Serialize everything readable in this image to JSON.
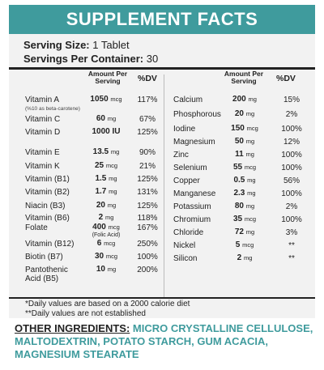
{
  "title": "SUPPLEMENT FACTS",
  "serving": {
    "size_label": "Serving Size:",
    "size_value": "1 Tablet",
    "per_container_label": "Servings Per Container:",
    "per_container_value": "30"
  },
  "headers": {
    "amount_line1": "Amount Per",
    "amount_line2": "Serving",
    "dv": "%DV"
  },
  "left_rows": [
    {
      "name": "Vitamin A",
      "sub": "(%10 as beta-carotene)",
      "amount": "1050",
      "unit": "mcg",
      "dv": "117%"
    },
    {
      "name": "Vitamin C",
      "sub": "",
      "amount": "60",
      "unit": "mg",
      "dv": "67%"
    },
    {
      "name": "Vitamin D",
      "sub": "",
      "amount": "1000 IU",
      "unit": "",
      "dv": "125%"
    },
    {
      "name": "Vitamin E",
      "sub": "",
      "amount": "13.5",
      "unit": "mg",
      "dv": "90%"
    },
    {
      "name": "Vitamin K",
      "sub": "",
      "amount": "25",
      "unit": "mcg",
      "dv": "21%"
    },
    {
      "name": "Vitamin (B1)",
      "sub": "",
      "amount": "1.5",
      "unit": "mg",
      "dv": "125%"
    },
    {
      "name": "Vitamin (B2)",
      "sub": "",
      "amount": "1.7",
      "unit": "mg",
      "dv": "131%"
    },
    {
      "name": "Niacin (B3)",
      "sub": "",
      "amount": "20",
      "unit": "mg",
      "dv": "125%"
    },
    {
      "name": "Vitamin (B6)",
      "sub": "",
      "amount": "2",
      "unit": "mg",
      "dv": "118%"
    },
    {
      "name": "Folate",
      "sub": "",
      "amount": "400",
      "unit": "mcg",
      "extra": "(Folic Acid)",
      "dv": "167%"
    },
    {
      "name": "Vitamin (B12)",
      "sub": "",
      "amount": "6",
      "unit": "mcg",
      "dv": "250%"
    },
    {
      "name": "Biotin (B7)",
      "sub": "",
      "amount": "30",
      "unit": "mcg",
      "dv": "100%"
    },
    {
      "name": "Pantothenic",
      "sub2": "Acid (B5)",
      "amount": "10",
      "unit": "mg",
      "dv": "200%"
    }
  ],
  "right_rows": [
    {
      "name": "Calcium",
      "amount": "200",
      "unit": "mg",
      "dv": "15%"
    },
    {
      "name": "Phosphorous",
      "amount": "20",
      "unit": "mg",
      "dv": "2%"
    },
    {
      "name": "Iodine",
      "amount": "150",
      "unit": "mcg",
      "dv": "100%"
    },
    {
      "name": "Magnesium",
      "amount": "50",
      "unit": "mg",
      "dv": "12%"
    },
    {
      "name": "Zinc",
      "amount": "11",
      "unit": "mg",
      "dv": "100%"
    },
    {
      "name": "Selenium",
      "amount": "55",
      "unit": "mcg",
      "dv": "100%"
    },
    {
      "name": "Copper",
      "amount": "0.5",
      "unit": "mg",
      "dv": "56%"
    },
    {
      "name": "Manganese",
      "amount": "2.3",
      "unit": "mg",
      "dv": "100%"
    },
    {
      "name": "Potassium",
      "amount": "80",
      "unit": "mg",
      "dv": "2%"
    },
    {
      "name": "Chromium",
      "amount": "35",
      "unit": "mcg",
      "dv": "100%"
    },
    {
      "name": "Chloride",
      "amount": "72",
      "unit": "mg",
      "dv": "3%"
    },
    {
      "name": "Nickel",
      "amount": "5",
      "unit": "mcg",
      "dv": "**"
    },
    {
      "name": "Silicon",
      "amount": "2",
      "unit": "mg",
      "dv": "**"
    }
  ],
  "footnotes": [
    "*Daily values are based on a 2000 calorie diet",
    "**Daily values are not established"
  ],
  "ingredients": {
    "label": "OTHER INGREDIENTS:",
    "text": "MICRO CRYSTALLINE CELLULOSE, MALTODEXTRIN, POTATO STARCH, GUM ACACIA, MAGNESIUM STEARATE"
  },
  "colors": {
    "accent": "#3f9b9d",
    "panel": "#f2f2f2"
  }
}
